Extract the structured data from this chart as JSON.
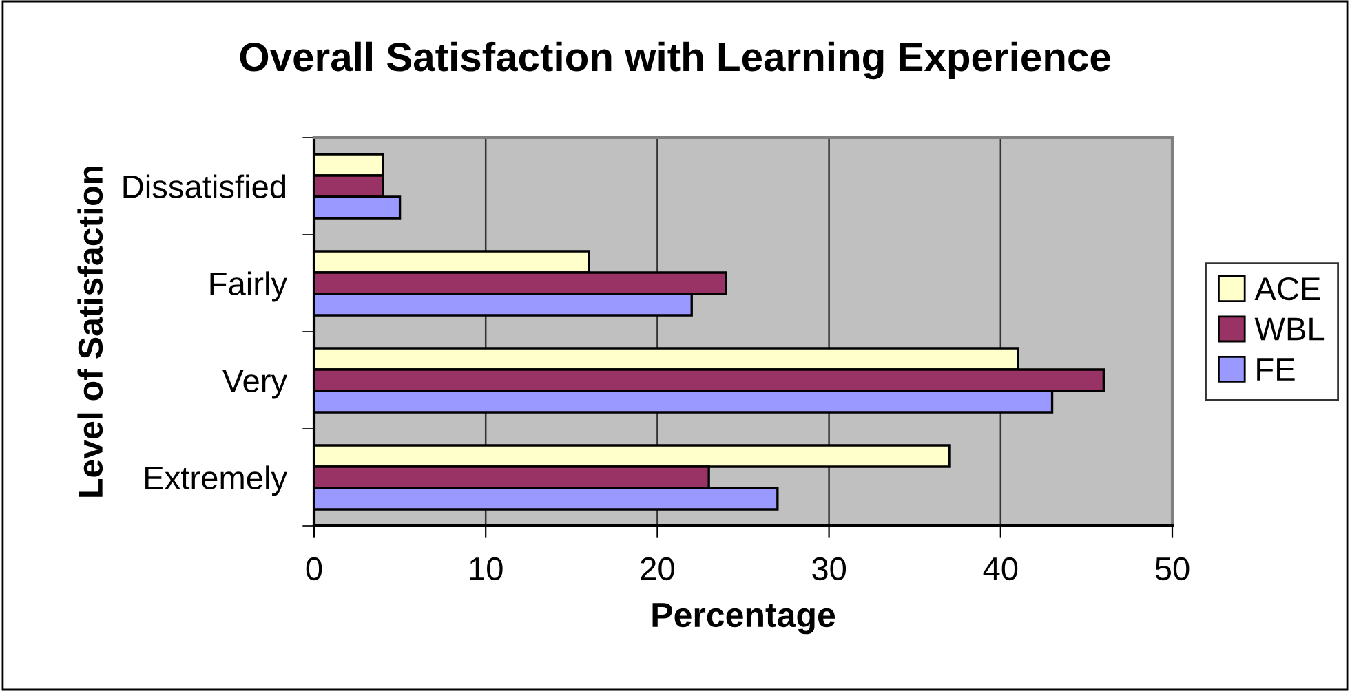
{
  "chart_data": {
    "type": "bar",
    "orientation": "horizontal",
    "title": "Overall Satisfaction with Learning Experience",
    "xlabel": "Percentage",
    "ylabel": "Level of Satisfaction",
    "categories": [
      "Dissatisfied",
      "Fairly",
      "Very",
      "Extremely"
    ],
    "series": [
      {
        "name": "ACE",
        "color": "#ffffcc",
        "values": [
          4,
          16,
          41,
          37
        ]
      },
      {
        "name": "WBL",
        "color": "#993366",
        "values": [
          4,
          24,
          46,
          23
        ]
      },
      {
        "name": "FE",
        "color": "#9999ff",
        "values": [
          5,
          22,
          43,
          27
        ]
      }
    ],
    "xlim": [
      0,
      50
    ],
    "xticks": [
      0,
      10,
      20,
      30,
      40,
      50
    ],
    "grid": "x",
    "legend": "right"
  }
}
